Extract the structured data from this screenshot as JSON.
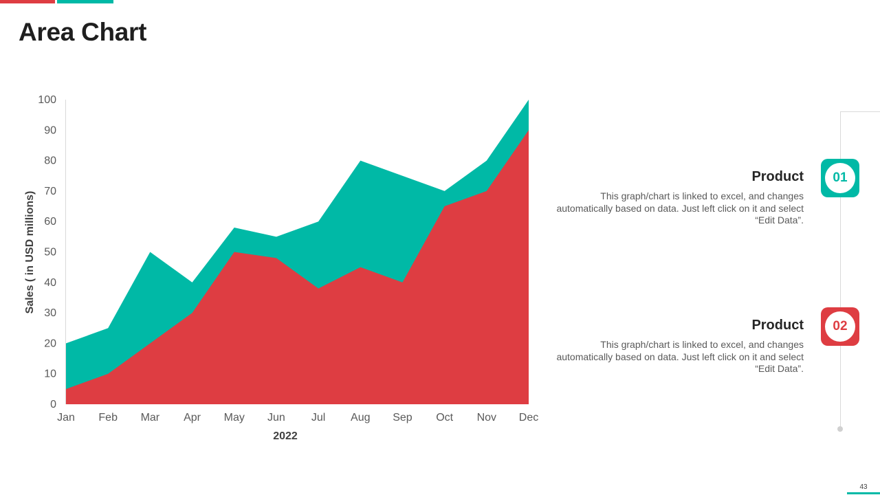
{
  "slide": {
    "title": "Area Chart",
    "page_number": "43",
    "colors": {
      "red": "#de3d42",
      "teal": "#00b9a6"
    }
  },
  "legend": [
    {
      "number": "01",
      "heading": "Product",
      "description": "This graph/chart is linked to excel, and changes automatically based on data. Just left click on it and select “Edit Data”.",
      "color": "#00b9a6"
    },
    {
      "number": "02",
      "heading": "Product",
      "description": "This graph/chart is linked to excel, and changes automatically based on data. Just left click on it and select “Edit Data”.",
      "color": "#de3d42"
    }
  ],
  "chart_data": {
    "type": "area",
    "title": "",
    "xlabel": "2022",
    "ylabel": "Sales  ( in USD millions)",
    "categories": [
      "Jan",
      "Feb",
      "Mar",
      "Apr",
      "May",
      "Jun",
      "Jul",
      "Aug",
      "Sep",
      "Oct",
      "Nov",
      "Dec"
    ],
    "ylim": [
      0,
      100
    ],
    "yticks": [
      0,
      10,
      20,
      30,
      40,
      50,
      60,
      70,
      80,
      90,
      100
    ],
    "grid": false,
    "series": [
      {
        "name": "Product 01",
        "color": "#00b9a6",
        "values": [
          20,
          25,
          50,
          40,
          58,
          55,
          60,
          80,
          75,
          70,
          80,
          100
        ]
      },
      {
        "name": "Product 02",
        "color": "#de3d42",
        "values": [
          5,
          10,
          20,
          30,
          50,
          48,
          38,
          45,
          40,
          65,
          70,
          90
        ]
      }
    ]
  }
}
